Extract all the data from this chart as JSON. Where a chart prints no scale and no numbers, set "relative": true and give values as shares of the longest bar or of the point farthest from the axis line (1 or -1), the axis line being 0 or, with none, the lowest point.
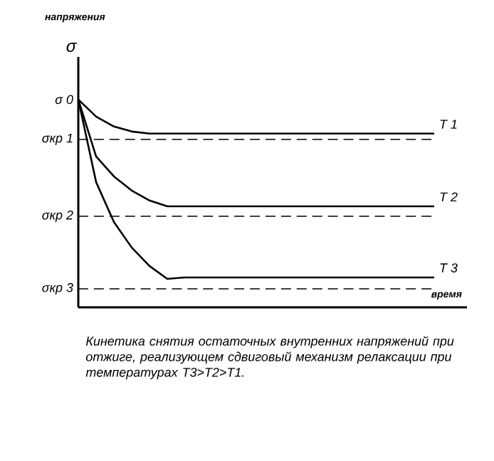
{
  "chart_data": {
    "type": "line",
    "title": "напряжения",
    "ylabel": "σ",
    "xlabel": "время",
    "relative": true,
    "categories": [
      null,
      null,
      null,
      null,
      null,
      null,
      null,
      null,
      null,
      null,
      null,
      null,
      null,
      null,
      null,
      null,
      null,
      null,
      null,
      null,
      null
    ],
    "series": [
      {
        "name": "T 1",
        "color": "#000000",
        "values": [
          1,
          0.918,
          0.87,
          0.846,
          0.836,
          0.836,
          0.836,
          0.836,
          0.836,
          0.836,
          0.836,
          0.836,
          0.836,
          0.836,
          0.836,
          0.836,
          0.836,
          0.836,
          0.836,
          0.836,
          0.836
        ]
      },
      {
        "name": "T 2",
        "color": "#000000",
        "values": [
          1,
          0.726,
          0.63,
          0.562,
          0.514,
          0.486,
          0.486,
          0.486,
          0.486,
          0.486,
          0.486,
          0.486,
          0.486,
          0.486,
          0.486,
          0.486,
          0.486,
          0.486,
          0.486,
          0.486,
          0.486
        ]
      },
      {
        "name": "T 3",
        "color": "#000000",
        "values": [
          1,
          0.603,
          0.411,
          0.288,
          0.199,
          0.137,
          0.144,
          0.144,
          0.144,
          0.144,
          0.144,
          0.144,
          0.144,
          0.144,
          0.144,
          0.144,
          0.144,
          0.144,
          0.144,
          0.144,
          0.144
        ]
      }
    ],
    "ref_lines": [
      {
        "axis": "y",
        "value": 0.808,
        "label": "σкр 1",
        "color": "#000000",
        "line_style": "dashed"
      },
      {
        "axis": "y",
        "value": 0.438,
        "label": "σкр 2",
        "color": "#000000",
        "line_style": "dashed"
      },
      {
        "axis": "y",
        "value": 0.089,
        "label": "σкр 3",
        "color": "#000000",
        "line_style": "dashed"
      }
    ],
    "annotations": [
      "σ 0",
      "Кинетика снятия остаточных внутренних напряжений при отжиге, реализующем сдвиговый механизм релаксации при температурах T3>T2>T1."
    ],
    "marker": "none",
    "line_style": "solid"
  }
}
